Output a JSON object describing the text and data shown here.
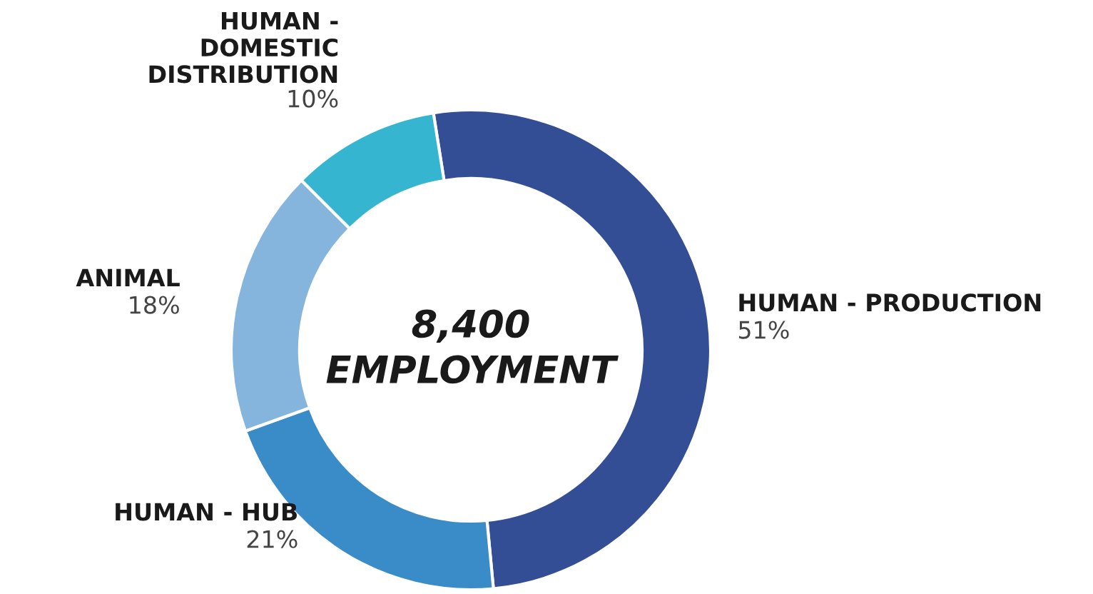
{
  "chart_data": {
    "type": "donut",
    "categories": [
      "HUMAN - PRODUCTION",
      "HUMAN - HUB",
      "ANIMAL",
      "HUMAN -\nDOMESTIC\nDISTRIBUTION"
    ],
    "values": [
      51,
      21,
      18,
      10
    ],
    "colors": [
      "#344e96",
      "#3a8cc9",
      "#85b5dc",
      "#35b5cf"
    ],
    "value_labels": [
      "51%",
      "21%",
      "18%",
      "10%"
    ],
    "annotations": [
      "8,400",
      "EMPLOYMENT"
    ],
    "legend": false
  }
}
